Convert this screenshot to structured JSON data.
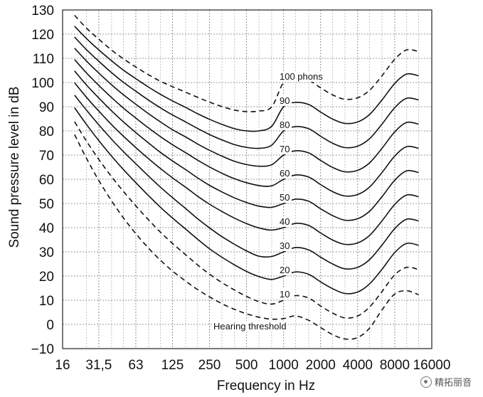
{
  "chart_data": {
    "type": "line",
    "title": "",
    "xlabel": "Frequency in Hz",
    "ylabel": "Sound pressure level in dB",
    "x_scale": "log",
    "xlim": [
      16,
      16000
    ],
    "ylim": [
      -10,
      130
    ],
    "grid": true,
    "x_ticks": [
      16,
      31.5,
      63,
      125,
      250,
      500,
      1000,
      2000,
      4000,
      8000,
      16000
    ],
    "x_tick_labels": [
      "16",
      "31,5",
      "63",
      "125",
      "250",
      "500",
      "1000",
      "2000",
      "4000",
      "8000",
      "16000"
    ],
    "y_ticks": [
      -10,
      0,
      10,
      20,
      30,
      40,
      50,
      60,
      70,
      80,
      90,
      100,
      110,
      120,
      130
    ],
    "y_tick_labels": [
      "−10",
      "0",
      "10",
      "20",
      "30",
      "40",
      "50",
      "60",
      "70",
      "80",
      "90",
      "100",
      "110",
      "120",
      "130"
    ],
    "series": [
      {
        "name": "Hearing threshold",
        "label": "Hearing threshold",
        "style": "dashed",
        "x": [
          20,
          25,
          31.5,
          40,
          50,
          63,
          80,
          100,
          125,
          160,
          200,
          250,
          315,
          400,
          500,
          630,
          800,
          1000,
          1250,
          1600,
          2000,
          2500,
          3150,
          4000,
          5000,
          6300,
          8000,
          10000,
          12500
        ],
        "values": [
          78.5,
          68.7,
          59.5,
          51.1,
          44,
          37.5,
          31.5,
          26.5,
          22.1,
          17.9,
          14.4,
          11.4,
          8.6,
          6.2,
          4.4,
          3,
          2.2,
          2.4,
          3.5,
          1.7,
          -1.3,
          -4.2,
          -6,
          -5.4,
          -1.5,
          6,
          12.6,
          13.9,
          12.3
        ]
      },
      {
        "name": "10 phons",
        "label": "10",
        "style": "dashed",
        "x": [
          20,
          25,
          31.5,
          40,
          50,
          63,
          80,
          100,
          125,
          160,
          200,
          250,
          315,
          400,
          500,
          630,
          800,
          1000,
          1250,
          1600,
          2000,
          2500,
          3150,
          4000,
          5000,
          6300,
          8000,
          10000,
          12500
        ],
        "values": [
          83.8,
          75.8,
          68.2,
          61.1,
          54.96,
          49,
          43.2,
          38.1,
          33.5,
          28.8,
          24.6,
          20.8,
          17.3,
          14.2,
          11.6,
          9.4,
          8.4,
          10,
          11.9,
          10.9,
          7.6,
          4.7,
          2.7,
          3.5,
          7.2,
          13.6,
          20.5,
          23.6,
          22.7
        ]
      },
      {
        "name": "20 phons",
        "label": "20",
        "style": "solid",
        "x": [
          20,
          25,
          31.5,
          40,
          50,
          63,
          80,
          100,
          125,
          160,
          200,
          250,
          315,
          400,
          500,
          630,
          800,
          1000,
          1250,
          1600,
          2000,
          2500,
          3150,
          4000,
          5000,
          6300,
          8000,
          10000,
          12500
        ],
        "values": [
          89.6,
          82.7,
          76,
          69.6,
          64,
          58.6,
          53.2,
          48.4,
          44,
          39.4,
          35.2,
          31.3,
          27.8,
          24.6,
          21.9,
          19.8,
          18.6,
          20,
          21.7,
          20.7,
          17.6,
          14.8,
          12.8,
          13.4,
          16.8,
          22.8,
          29.7,
          33.5,
          32.7
        ]
      },
      {
        "name": "30 phons",
        "label": "30",
        "style": "solid",
        "x": [
          20,
          25,
          31.5,
          40,
          50,
          63,
          80,
          100,
          125,
          160,
          200,
          250,
          315,
          400,
          500,
          630,
          800,
          1000,
          1250,
          1600,
          2000,
          2500,
          3150,
          4000,
          5000,
          6300,
          8000,
          10000,
          12500
        ],
        "values": [
          94.8,
          88.6,
          82.5,
          76.6,
          71.4,
          66.4,
          61.3,
          56.7,
          52.4,
          47.9,
          43.7,
          39.9,
          36.3,
          33.1,
          30.4,
          28.2,
          28.1,
          30,
          31.8,
          30.8,
          27.8,
          25,
          23,
          23.6,
          26.8,
          32.8,
          39.6,
          43.5,
          42.8
        ]
      },
      {
        "name": "40 phons",
        "label": "40",
        "style": "solid",
        "x": [
          20,
          25,
          31.5,
          40,
          50,
          63,
          80,
          100,
          125,
          160,
          200,
          250,
          315,
          400,
          500,
          630,
          800,
          1000,
          1250,
          1600,
          2000,
          2500,
          3150,
          4000,
          5000,
          6300,
          8000,
          10000,
          12500
        ],
        "values": [
          99.9,
          93.9,
          88.2,
          82.6,
          77.8,
          73.1,
          68.5,
          64.4,
          60.6,
          56.7,
          53,
          49.7,
          46.7,
          43.9,
          41.7,
          39.9,
          39,
          40,
          41.8,
          40.9,
          37.8,
          34.9,
          33.1,
          33.7,
          36.8,
          42.8,
          49.6,
          53.5,
          52.8
        ]
      },
      {
        "name": "50 phons",
        "label": "50",
        "style": "solid",
        "x": [
          20,
          25,
          31.5,
          40,
          50,
          63,
          80,
          100,
          125,
          160,
          200,
          250,
          315,
          400,
          500,
          630,
          800,
          1000,
          1250,
          1600,
          2000,
          2500,
          3150,
          4000,
          5000,
          6300,
          8000,
          10000,
          12500
        ],
        "values": [
          104.8,
          99,
          93.6,
          88.3,
          83.7,
          79.3,
          75,
          71.1,
          67.6,
          64,
          60.6,
          57.5,
          54.8,
          52.3,
          50.4,
          48.9,
          48.4,
          50,
          51.8,
          50.9,
          47.8,
          45,
          43.1,
          43.7,
          46.8,
          52.8,
          59.6,
          63.5,
          62.8
        ]
      },
      {
        "name": "60 phons",
        "label": "60",
        "style": "solid",
        "x": [
          20,
          25,
          31.5,
          40,
          50,
          63,
          80,
          100,
          125,
          160,
          200,
          250,
          315,
          400,
          500,
          630,
          800,
          1000,
          1250,
          1600,
          2000,
          2500,
          3150,
          4000,
          5000,
          6300,
          8000,
          10000,
          12500
        ],
        "values": [
          109.5,
          104,
          98.8,
          93.8,
          89.4,
          85.3,
          81.2,
          77.6,
          74.3,
          71,
          67.9,
          65.1,
          62.5,
          60.2,
          58.6,
          57.4,
          57.3,
          60,
          61.8,
          60.9,
          57.8,
          54.9,
          53.1,
          53.7,
          56.8,
          62.8,
          69.6,
          73.5,
          72.8
        ]
      },
      {
        "name": "70 phons",
        "label": "70",
        "style": "solid",
        "x": [
          20,
          25,
          31.5,
          40,
          50,
          63,
          80,
          100,
          125,
          160,
          200,
          250,
          315,
          400,
          500,
          630,
          800,
          1000,
          1250,
          1600,
          2000,
          2500,
          3150,
          4000,
          5000,
          6300,
          8000,
          10000,
          12500
        ],
        "values": [
          114.2,
          108.9,
          103.9,
          99.1,
          94.9,
          91,
          87.1,
          83.7,
          80.5,
          77.5,
          74.6,
          72,
          69.6,
          67.4,
          66.1,
          65.4,
          66,
          70,
          71.8,
          70.9,
          67.8,
          64.9,
          63.1,
          63.7,
          66.8,
          72.8,
          79.6,
          83.5,
          82.8
        ]
      },
      {
        "name": "80 phons",
        "label": "80",
        "style": "solid",
        "x": [
          20,
          25,
          31.5,
          40,
          50,
          63,
          80,
          100,
          125,
          160,
          200,
          250,
          315,
          400,
          500,
          630,
          800,
          1000,
          1250,
          1600,
          2000,
          2500,
          3150,
          4000,
          5000,
          6300,
          8000,
          10000,
          12500
        ],
        "values": [
          118.8,
          113.6,
          108.8,
          104.1,
          100.1,
          96.4,
          92.7,
          89.5,
          86.6,
          83.7,
          81,
          78.5,
          76.3,
          74.3,
          73.2,
          72.8,
          74.1,
          80,
          81.8,
          80.9,
          77.8,
          74.9,
          73.1,
          73.7,
          76.8,
          82.8,
          89.6,
          93.5,
          92.8
        ]
      },
      {
        "name": "90 phons",
        "label": "90",
        "style": "solid",
        "x": [
          20,
          25,
          31.5,
          40,
          50,
          63,
          80,
          100,
          125,
          160,
          200,
          250,
          315,
          400,
          500,
          630,
          800,
          1000,
          1250,
          1600,
          2000,
          2500,
          3150,
          4000,
          5000,
          6300,
          8000,
          10000,
          12500
        ],
        "values": [
          123.3,
          118.2,
          113.5,
          109,
          105.1,
          101.6,
          98.1,
          95.1,
          92.4,
          89.7,
          87.1,
          84.8,
          82.7,
          80.9,
          80,
          80,
          81.9,
          90,
          91.8,
          90.9,
          87.8,
          84.9,
          83.1,
          83.7,
          86.8,
          92.8,
          99.6,
          103.5,
          102.8
        ]
      },
      {
        "name": "100 phons",
        "label": "100 phons",
        "style": "dashed",
        "x": [
          20,
          25,
          31.5,
          40,
          50,
          63,
          80,
          100,
          125,
          160,
          200,
          250,
          315,
          400,
          500,
          630,
          800,
          1000,
          1250,
          1600,
          2000,
          2500,
          3150,
          4000,
          5000,
          6300,
          8000,
          10000,
          12500
        ],
        "values": [
          127.8,
          122.5,
          117.9,
          113.4,
          109.8,
          106.4,
          103.2,
          100.5,
          98.3,
          96,
          93.9,
          91.9,
          90.1,
          88.6,
          88,
          88.2,
          89.9,
          100,
          101.8,
          100.9,
          97.8,
          94.9,
          93.1,
          93.7,
          96.8,
          102.8,
          109.6,
          113.5,
          112.8
        ]
      }
    ]
  },
  "watermark": {
    "text": "精拓丽音",
    "icon": "wechat-icon"
  }
}
